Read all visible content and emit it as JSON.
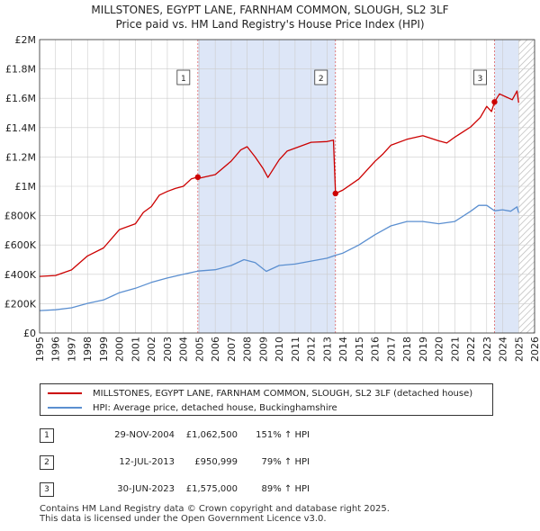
{
  "chart_data": {
    "type": "line",
    "title": "MILLSTONES, EGYPT LANE, FARNHAM COMMON, SLOUGH, SL2 3LF",
    "subtitle": "Price paid vs. HM Land Registry's House Price Index (HPI)",
    "xlim": [
      1995,
      2026
    ],
    "ylim": [
      0,
      2000000
    ],
    "y_ticks": [
      {
        "value": 0,
        "label": "£0"
      },
      {
        "value": 200000,
        "label": "£200K"
      },
      {
        "value": 400000,
        "label": "£400K"
      },
      {
        "value": 600000,
        "label": "£600K"
      },
      {
        "value": 800000,
        "label": "£800K"
      },
      {
        "value": 1000000,
        "label": "£1M"
      },
      {
        "value": 1200000,
        "label": "£1.2M"
      },
      {
        "value": 1400000,
        "label": "£1.4M"
      },
      {
        "value": 1600000,
        "label": "£1.6M"
      },
      {
        "value": 1800000,
        "label": "£1.8M"
      },
      {
        "value": 2000000,
        "label": "£2M"
      }
    ],
    "x_ticks": [
      "1995",
      "1996",
      "1997",
      "1998",
      "1999",
      "2000",
      "2001",
      "2002",
      "2003",
      "2004",
      "2005",
      "2006",
      "2007",
      "2008",
      "2009",
      "2010",
      "2011",
      "2012",
      "2013",
      "2014",
      "2015",
      "2016",
      "2017",
      "2018",
      "2019",
      "2020",
      "2021",
      "2022",
      "2023",
      "2024",
      "2025",
      "2026"
    ],
    "shaded_ranges": [
      [
        2004.91,
        2013.53
      ],
      [
        2023.49,
        2025.0
      ]
    ],
    "hatched_range": [
      2025.0,
      2026
    ],
    "series": [
      {
        "name": "MILLSTONES, EGYPT LANE, FARNHAM COMMON, SLOUGH, SL2 3LF (detached house)",
        "color": "#cc0000",
        "x": [
          1995.0,
          1996.0,
          1997.0,
          1998.0,
          1999.0,
          2000.0,
          2001.0,
          2001.5,
          2002.0,
          2002.5,
          2003.0,
          2003.5,
          2004.0,
          2004.5,
          2004.91,
          2005.0,
          2006.0,
          2007.0,
          2007.6,
          2008.0,
          2008.5,
          2009.0,
          2009.3,
          2010.0,
          2010.5,
          2011.0,
          2012.0,
          2013.0,
          2013.4,
          2013.53,
          2014.0,
          2015.0,
          2016.0,
          2016.5,
          2017.0,
          2018.0,
          2019.0,
          2020.0,
          2020.5,
          2021.0,
          2021.5,
          2022.0,
          2022.6,
          2023.0,
          2023.3,
          2023.49,
          2023.8,
          2024.2,
          2024.6,
          2024.9,
          2025.0
        ],
        "y": [
          386000,
          392000,
          430000,
          525000,
          580000,
          705000,
          745000,
          822000,
          862000,
          940000,
          965000,
          985000,
          1000000,
          1050000,
          1062500,
          1055000,
          1080000,
          1172000,
          1248000,
          1270000,
          1200000,
          1120000,
          1060000,
          1180000,
          1240000,
          1260000,
          1300000,
          1305000,
          1315000,
          950999,
          975000,
          1050000,
          1170000,
          1220000,
          1280000,
          1320000,
          1345000,
          1310000,
          1295000,
          1335000,
          1370000,
          1405000,
          1470000,
          1545000,
          1510000,
          1575000,
          1630000,
          1610000,
          1590000,
          1650000,
          1570000
        ]
      },
      {
        "name": "HPI: Average price, detached house, Buckinghamshire",
        "color": "#5b8fd0",
        "x": [
          1995.0,
          1996.0,
          1997.0,
          1998.0,
          1999.0,
          2000.0,
          2001.0,
          2002.0,
          2003.0,
          2004.0,
          2004.91,
          2006.0,
          2007.0,
          2007.8,
          2008.5,
          2009.2,
          2010.0,
          2011.0,
          2012.0,
          2013.0,
          2013.53,
          2014.0,
          2015.0,
          2016.0,
          2017.0,
          2018.0,
          2019.0,
          2020.0,
          2021.0,
          2022.0,
          2022.5,
          2023.0,
          2023.49,
          2024.0,
          2024.5,
          2024.9,
          2025.0
        ],
        "y": [
          153000,
          158000,
          172000,
          202000,
          225000,
          275000,
          305000,
          345000,
          375000,
          400000,
          422000,
          431000,
          460000,
          500000,
          480000,
          420000,
          460000,
          470000,
          490000,
          510000,
          530000,
          545000,
          600000,
          670000,
          730000,
          760000,
          760000,
          745000,
          760000,
          830000,
          870000,
          870000,
          833000,
          840000,
          830000,
          860000,
          820000
        ]
      }
    ],
    "sales": [
      {
        "label": "1",
        "x": 2004.91,
        "price": 1062500
      },
      {
        "label": "2",
        "x": 2013.53,
        "price": 950999
      },
      {
        "label": "3",
        "x": 2023.49,
        "price": 1575000
      }
    ]
  },
  "legend": {
    "property": "MILLSTONES, EGYPT LANE, FARNHAM COMMON, SLOUGH, SL2 3LF (detached house)",
    "hpi": "HPI: Average price, detached house, Buckinghamshire"
  },
  "transactions": [
    {
      "num": "1",
      "date": "29-NOV-2004",
      "price": "£1,062,500",
      "hpi": "151% ↑ HPI"
    },
    {
      "num": "2",
      "date": "12-JUL-2013",
      "price": "£950,999",
      "hpi": "79% ↑ HPI"
    },
    {
      "num": "3",
      "date": "30-JUN-2023",
      "price": "£1,575,000",
      "hpi": "89% ↑ HPI"
    }
  ],
  "footer": {
    "line1": "Contains HM Land Registry data © Crown copyright and database right 2025.",
    "line2": "This data is licensed under the Open Government Licence v3.0."
  },
  "colors": {
    "property_line": "#cc0000",
    "hpi_line": "#5b8fd0",
    "shade": "#dde6f7",
    "grid": "#cccccc"
  }
}
